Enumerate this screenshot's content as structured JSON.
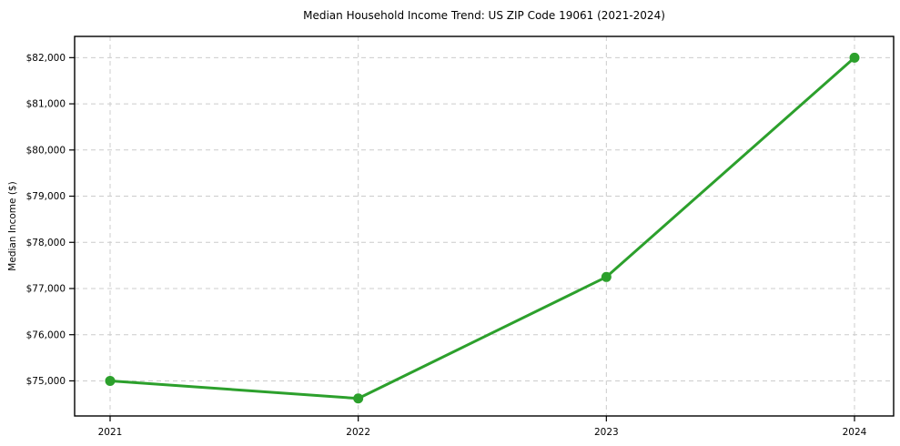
{
  "chart_data": {
    "type": "line",
    "title": "Median Household Income Trend: US ZIP Code 19061 (2021-2024)",
    "xlabel": "",
    "ylabel": "Median Income ($)",
    "categories": [
      "2021",
      "2022",
      "2023",
      "2024"
    ],
    "series": [
      {
        "name": "Median Household Income",
        "values": [
          75000,
          74620,
          77250,
          82000
        ]
      }
    ],
    "yticks": [
      75000,
      76000,
      77000,
      78000,
      79000,
      80000,
      81000,
      82000
    ],
    "ytick_prefix": "$",
    "ylim": [
      74240,
      82460
    ],
    "grid": true,
    "legend": false,
    "colors": {
      "line": "#2ca02c",
      "marker": "#2ca02c",
      "gridline": "#cccccc",
      "axis": "#000000",
      "background": "#ffffff",
      "text": "#000000"
    }
  }
}
